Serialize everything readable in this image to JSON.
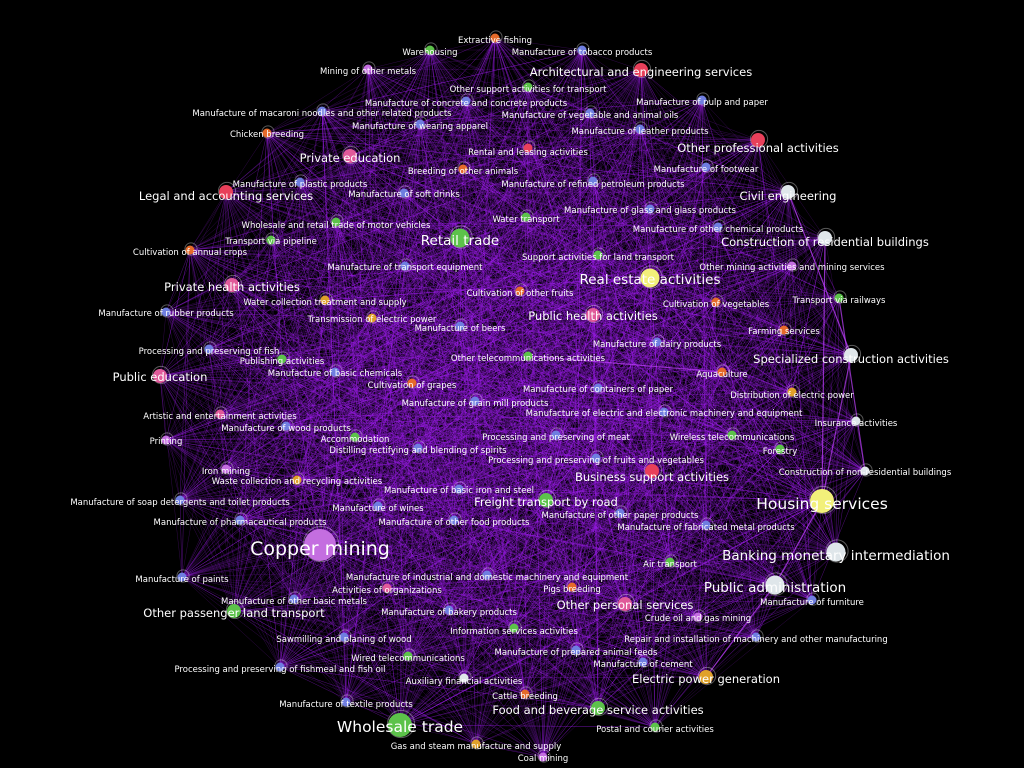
{
  "colors": {
    "background": "#000000",
    "edge": "#a020f0",
    "label": "#ffffff",
    "node_red": "#e8405a",
    "node_pink": "#e05a9a",
    "node_blue": "#6f7ee0",
    "node_green": "#5cc24a",
    "node_orange": "#e56a2a",
    "node_gold": "#e0a12a",
    "node_yellow": "#f2f07a",
    "node_white": "#dfe6ea",
    "node_violet": "#c46ee0",
    "node_lightgreen": "#a8e06a"
  },
  "nodes": [
    {
      "label": "Extractive fishing",
      "color": "node_orange",
      "size": 1
    },
    {
      "label": "Warehousing",
      "color": "node_green",
      "size": 1
    },
    {
      "label": "Manufacture of tobacco products",
      "color": "node_blue",
      "size": 1
    },
    {
      "label": "Mining of other metals",
      "color": "node_violet",
      "size": 1
    },
    {
      "label": "Architectural and engineering services",
      "color": "node_red",
      "size": 2
    },
    {
      "label": "Other support activities for transport",
      "color": "node_green",
      "size": 1
    },
    {
      "label": "Manufacture of concrete and concrete products",
      "color": "node_blue",
      "size": 1
    },
    {
      "label": "Manufacture of pulp and paper",
      "color": "node_blue",
      "size": 1
    },
    {
      "label": "Manufacture of macaroni noodles and other related products",
      "color": "node_blue",
      "size": 1
    },
    {
      "label": "Manufacture of vegetable and animal oils",
      "color": "node_blue",
      "size": 1
    },
    {
      "label": "Manufacture of wearing apparel",
      "color": "node_blue",
      "size": 1
    },
    {
      "label": "Chicken breeding",
      "color": "node_orange",
      "size": 1
    },
    {
      "label": "Manufacture of leather products",
      "color": "node_blue",
      "size": 1
    },
    {
      "label": "Other professional activities",
      "color": "node_red",
      "size": 2
    },
    {
      "label": "Rental and leasing activities",
      "color": "node_red",
      "size": 1
    },
    {
      "label": "Private education",
      "color": "node_pink",
      "size": 2
    },
    {
      "label": "Breeding of other animals",
      "color": "node_orange",
      "size": 1
    },
    {
      "label": "Manufacture of footwear",
      "color": "node_blue",
      "size": 1
    },
    {
      "label": "Manufacture of plastic products",
      "color": "node_blue",
      "size": 1
    },
    {
      "label": "Manufacture of refined petroleum products",
      "color": "node_blue",
      "size": 1
    },
    {
      "label": "Legal and accounting services",
      "color": "node_red",
      "size": 2
    },
    {
      "label": "Manufacture of soft drinks",
      "color": "node_blue",
      "size": 1
    },
    {
      "label": "Civil engineering",
      "color": "node_white",
      "size": 2
    },
    {
      "label": "Manufacture of glass and glass products",
      "color": "node_blue",
      "size": 1
    },
    {
      "label": "Water transport",
      "color": "node_green",
      "size": 1
    },
    {
      "label": "Wholesale and retail trade of motor vehicles",
      "color": "node_green",
      "size": 1
    },
    {
      "label": "Manufacture of other chemical products",
      "color": "node_blue",
      "size": 1
    },
    {
      "label": "Retail trade",
      "color": "node_green",
      "size": 3
    },
    {
      "label": "Transport via pipeline",
      "color": "node_green",
      "size": 1
    },
    {
      "label": "Construction of residential buildings",
      "color": "node_white",
      "size": 2
    },
    {
      "label": "Cultivation of annual crops",
      "color": "node_orange",
      "size": 1
    },
    {
      "label": "Support activities for land transport",
      "color": "node_green",
      "size": 1
    },
    {
      "label": "Other mining activities and mining services",
      "color": "node_violet",
      "size": 1
    },
    {
      "label": "Manufacture of transport equipment",
      "color": "node_blue",
      "size": 1
    },
    {
      "label": "Real estate activities",
      "color": "node_yellow",
      "size": 3
    },
    {
      "label": "Private health activities",
      "color": "node_pink",
      "size": 2
    },
    {
      "label": "Cultivation of other fruits",
      "color": "node_orange",
      "size": 1
    },
    {
      "label": "Transport via railways",
      "color": "node_green",
      "size": 1
    },
    {
      "label": "Water collection treatment and supply",
      "color": "node_gold",
      "size": 1
    },
    {
      "label": "Cultivation of vegetables",
      "color": "node_orange",
      "size": 1
    },
    {
      "label": "Manufacture of rubber products",
      "color": "node_blue",
      "size": 1
    },
    {
      "label": "Transmission of electric power",
      "color": "node_gold",
      "size": 1
    },
    {
      "label": "Manufacture of beers",
      "color": "node_blue",
      "size": 1
    },
    {
      "label": "Public health activities",
      "color": "node_pink",
      "size": 2
    },
    {
      "label": "Farming services",
      "color": "node_orange",
      "size": 1
    },
    {
      "label": "Manufacture of dairy products",
      "color": "node_blue",
      "size": 1
    },
    {
      "label": "Processing and preserving of fish",
      "color": "node_blue",
      "size": 1
    },
    {
      "label": "Publishing activities",
      "color": "node_green",
      "size": 1
    },
    {
      "label": "Other telecommunications activities",
      "color": "node_green",
      "size": 1
    },
    {
      "label": "Specialized construction activities",
      "color": "node_white",
      "size": 2
    },
    {
      "label": "Public education",
      "color": "node_pink",
      "size": 2
    },
    {
      "label": "Manufacture of basic chemicals",
      "color": "node_blue",
      "size": 1
    },
    {
      "label": "Aquaculture",
      "color": "node_orange",
      "size": 1
    },
    {
      "label": "Cultivation of grapes",
      "color": "node_orange",
      "size": 1
    },
    {
      "label": "Manufacture of containers of paper",
      "color": "node_blue",
      "size": 1
    },
    {
      "label": "Distribution of electric power",
      "color": "node_gold",
      "size": 1
    },
    {
      "label": "Manufacture of grain mill products",
      "color": "node_blue",
      "size": 1
    },
    {
      "label": "Artistic and entertainment activities",
      "color": "node_pink",
      "size": 1
    },
    {
      "label": "Manufacture of electric and electronic machinery and equipment",
      "color": "node_blue",
      "size": 1
    },
    {
      "label": "Manufacture of wood products",
      "color": "node_blue",
      "size": 1
    },
    {
      "label": "Insurance activities",
      "color": "node_white",
      "size": 1
    },
    {
      "label": "Printing",
      "color": "node_violet",
      "size": 1
    },
    {
      "label": "Accommodation",
      "color": "node_green",
      "size": 1
    },
    {
      "label": "Processing and preserving of meat",
      "color": "node_blue",
      "size": 1
    },
    {
      "label": "Wireless telecommunications",
      "color": "node_green",
      "size": 1
    },
    {
      "label": "Distilling rectifying and blending of spirits",
      "color": "node_blue",
      "size": 1
    },
    {
      "label": "Forestry",
      "color": "node_green",
      "size": 1
    },
    {
      "label": "Processing and preserving of fruits and vegetables",
      "color": "node_blue",
      "size": 1
    },
    {
      "label": "Iron mining",
      "color": "node_violet",
      "size": 1
    },
    {
      "label": "Construction of non-residential buildings",
      "color": "node_white",
      "size": 1
    },
    {
      "label": "Waste collection and recycling activities",
      "color": "node_gold",
      "size": 1
    },
    {
      "label": "Business support activities",
      "color": "node_red",
      "size": 2
    },
    {
      "label": "Manufacture of basic iron and steel",
      "color": "node_blue",
      "size": 1
    },
    {
      "label": "Manufacture of soap detergents and toilet products",
      "color": "node_blue",
      "size": 1
    },
    {
      "label": "Freight transport by road",
      "color": "node_green",
      "size": 2
    },
    {
      "label": "Housing services",
      "color": "node_yellow",
      "size": 4
    },
    {
      "label": "Manufacture of wines",
      "color": "node_blue",
      "size": 1
    },
    {
      "label": "Manufacture of other paper products",
      "color": "node_blue",
      "size": 1
    },
    {
      "label": "Manufacture of pharmaceutical products",
      "color": "node_blue",
      "size": 1
    },
    {
      "label": "Manufacture of other food products",
      "color": "node_blue",
      "size": 1
    },
    {
      "label": "Manufacture of fabricated metal products",
      "color": "node_blue",
      "size": 1
    },
    {
      "label": "Copper mining",
      "color": "node_violet",
      "size": 5
    },
    {
      "label": "Banking monetary intermediation",
      "color": "node_white",
      "size": 3
    },
    {
      "label": "Air transport",
      "color": "node_green",
      "size": 1
    },
    {
      "label": "Manufacture of paints",
      "color": "node_blue",
      "size": 1
    },
    {
      "label": "Manufacture of industrial and domestic machinery and equipment",
      "color": "node_blue",
      "size": 1
    },
    {
      "label": "Public administration",
      "color": "node_white",
      "size": 3
    },
    {
      "label": "Activities of organizations",
      "color": "node_pink",
      "size": 1
    },
    {
      "label": "Pigs breeding",
      "color": "node_orange",
      "size": 1
    },
    {
      "label": "Manufacture of other basic metals",
      "color": "node_blue",
      "size": 1
    },
    {
      "label": "Manufacture of furniture",
      "color": "node_blue",
      "size": 1
    },
    {
      "label": "Other personal services",
      "color": "node_pink",
      "size": 2
    },
    {
      "label": "Other passenger land transport",
      "color": "node_green",
      "size": 2
    },
    {
      "label": "Manufacture of bakery products",
      "color": "node_blue",
      "size": 1
    },
    {
      "label": "Crude oil and gas mining",
      "color": "node_violet",
      "size": 1
    },
    {
      "label": "Information services activities",
      "color": "node_green",
      "size": 1
    },
    {
      "label": "Sawmilling and planing of wood",
      "color": "node_blue",
      "size": 1
    },
    {
      "label": "Repair and installation of machinery and other manufacturing",
      "color": "node_blue",
      "size": 1
    },
    {
      "label": "Manufacture of prepared animal feeds",
      "color": "node_blue",
      "size": 1
    },
    {
      "label": "Wired telecommunications",
      "color": "node_green",
      "size": 1
    },
    {
      "label": "Manufacture of cement",
      "color": "node_blue",
      "size": 1
    },
    {
      "label": "Processing and preserving of fishmeal and fish oil",
      "color": "node_blue",
      "size": 1
    },
    {
      "label": "Auxiliary financial activities",
      "color": "node_white",
      "size": 1
    },
    {
      "label": "Electric power generation",
      "color": "node_gold",
      "size": 2
    },
    {
      "label": "Cattle breeding",
      "color": "node_orange",
      "size": 1
    },
    {
      "label": "Manufacture of textile products",
      "color": "node_blue",
      "size": 1
    },
    {
      "label": "Food and beverage service activities",
      "color": "node_green",
      "size": 2
    },
    {
      "label": "Wholesale trade",
      "color": "node_green",
      "size": 4
    },
    {
      "label": "Postal and courier activities",
      "color": "node_green",
      "size": 1
    },
    {
      "label": "Gas and steam manufacture and supply",
      "color": "node_gold",
      "size": 1
    },
    {
      "label": "Coal mining",
      "color": "node_violet",
      "size": 1
    }
  ]
}
